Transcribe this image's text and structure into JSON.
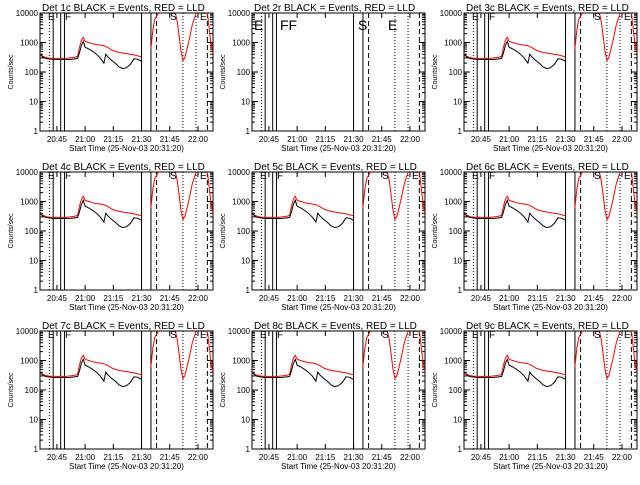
{
  "figure": {
    "xlabel": "Start Time (25-Nov-03 20:31:20)",
    "ylabel": "Counts/sec"
  },
  "chart_data": {
    "type": "line",
    "log_y": true,
    "ylim": [
      1,
      10000
    ],
    "xlim": [
      "20:36",
      "22:08"
    ],
    "yticks": [
      1,
      10,
      100,
      1000,
      10000
    ],
    "ytick_labels": [
      "1",
      "10",
      "100",
      "1000",
      "10000"
    ],
    "xticks": [
      "20:45",
      "21:00",
      "21:15",
      "21:30",
      "21:45",
      "22:00"
    ],
    "colors": {
      "events": "#000000",
      "lld": "#ff0000"
    },
    "event_lines": {
      "solid": [
        "20:43",
        "20:47",
        "20:49",
        "21:30",
        "21:35"
      ],
      "dashed": [
        "21:38",
        "22:05"
      ],
      "dotted": [
        "20:41",
        "21:52",
        "21:59"
      ]
    },
    "templates": {
      "events": [
        [
          "20:36",
          400
        ],
        [
          "20:38",
          300
        ],
        [
          "20:40",
          280
        ],
        [
          "20:42",
          270
        ],
        [
          "20:44",
          265
        ],
        [
          "20:46",
          265
        ],
        [
          "20:48",
          265
        ],
        [
          "20:50",
          265
        ],
        [
          "20:52",
          268
        ],
        [
          "20:54",
          275
        ],
        [
          "20:56",
          290
        ],
        [
          "20:57",
          450
        ],
        [
          "20:58",
          800
        ],
        [
          "20:59",
          1100
        ],
        [
          "21:00",
          700
        ],
        [
          "21:02",
          600
        ],
        [
          "21:04",
          500
        ],
        [
          "21:06",
          400
        ],
        [
          "21:08",
          300
        ],
        [
          "21:10",
          200
        ],
        [
          "21:11",
          400
        ],
        [
          "21:12",
          330
        ],
        [
          "21:14",
          250
        ],
        [
          "21:16",
          200
        ],
        [
          "21:18",
          150
        ],
        [
          "21:20",
          130
        ],
        [
          "21:22",
          140
        ],
        [
          "21:24",
          180
        ],
        [
          "21:26",
          280
        ],
        [
          "21:28",
          270
        ],
        [
          "21:29",
          250
        ],
        [
          "21:30",
          230
        ]
      ],
      "lld": [
        [
          "20:36",
          380
        ],
        [
          "20:38",
          330
        ],
        [
          "20:40",
          300
        ],
        [
          "20:42",
          290
        ],
        [
          "20:44",
          290
        ],
        [
          "20:46",
          290
        ],
        [
          "20:48",
          290
        ],
        [
          "20:50",
          290
        ],
        [
          "20:52",
          300
        ],
        [
          "20:54",
          310
        ],
        [
          "20:56",
          340
        ],
        [
          "20:57",
          700
        ],
        [
          "20:58",
          1200
        ],
        [
          "20:59",
          1500
        ],
        [
          "21:00",
          1100
        ],
        [
          "21:02",
          1000
        ],
        [
          "21:04",
          900
        ],
        [
          "21:06",
          850
        ],
        [
          "21:08",
          820
        ],
        [
          "21:10",
          780
        ],
        [
          "21:12",
          680
        ],
        [
          "21:14",
          560
        ],
        [
          "21:16",
          500
        ],
        [
          "21:18",
          460
        ],
        [
          "21:20",
          440
        ],
        [
          "21:22",
          420
        ],
        [
          "21:24",
          400
        ],
        [
          "21:26",
          380
        ],
        [
          "21:28",
          350
        ],
        [
          "21:30",
          330
        ]
      ],
      "lld_flare": [
        [
          "21:35",
          600
        ],
        [
          "21:36",
          2500
        ],
        [
          "21:37",
          6000
        ],
        [
          "21:39",
          10000
        ]
      ],
      "lld_dip": [
        [
          "21:48",
          10000
        ],
        [
          "21:49",
          5000
        ],
        [
          "21:50",
          1600
        ],
        [
          "21:51",
          500
        ],
        [
          "21:52",
          250
        ],
        [
          "21:53",
          300
        ],
        [
          "21:55",
          1000
        ],
        [
          "21:57",
          4000
        ],
        [
          "21:59",
          10000
        ]
      ],
      "lld_tail": [
        [
          "22:05",
          10000
        ],
        [
          "22:06",
          3000
        ],
        [
          "22:07",
          800
        ],
        [
          "22:08",
          400
        ]
      ]
    },
    "panels": [
      {
        "title": "Det 1c  BLACK = Events, RED = LLD",
        "has_data": true,
        "labels": [
          "E",
          "F",
          "S",
          "E"
        ]
      },
      {
        "title": "Det 2r  BLACK = Events, RED = LLD",
        "has_data": false,
        "labels": [
          "E",
          "FF",
          "S",
          "E"
        ]
      },
      {
        "title": "Det 3c  BLACK = Events, RED = LLD",
        "has_data": true,
        "labels": [
          "E",
          "F",
          "S",
          "E"
        ]
      },
      {
        "title": "Det 4c  BLACK = Events, RED = LLD",
        "has_data": true,
        "labels": [
          "E",
          "F",
          "S",
          "E"
        ]
      },
      {
        "title": "Det 5c  BLACK = Events, RED = LLD",
        "has_data": true,
        "labels": [
          "E",
          "F",
          "S",
          "E"
        ]
      },
      {
        "title": "Det 6c  BLACK = Events, RED = LLD",
        "has_data": true,
        "labels": [
          "E",
          "F",
          "S",
          "E"
        ]
      },
      {
        "title": "Det 7c  BLACK = Events, RED = LLD",
        "has_data": true,
        "labels": [
          "E",
          "F",
          "S",
          "E"
        ]
      },
      {
        "title": "Det 8c  BLACK = Events, RED = LLD",
        "has_data": true,
        "labels": [
          "E",
          "F",
          "S",
          "E"
        ]
      },
      {
        "title": "Det 9c  BLACK = Events, RED = LLD",
        "has_data": true,
        "labels": [
          "E",
          "F",
          "S",
          "E"
        ]
      }
    ]
  }
}
